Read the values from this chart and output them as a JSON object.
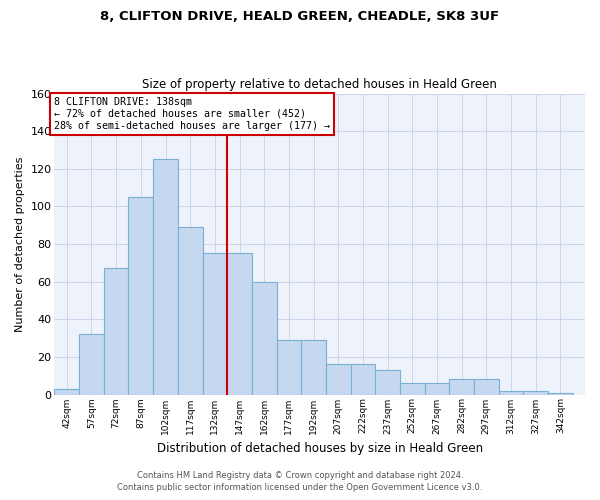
{
  "title": "8, CLIFTON DRIVE, HEALD GREEN, CHEADLE, SK8 3UF",
  "subtitle": "Size of property relative to detached houses in Heald Green",
  "xlabel": "Distribution of detached houses by size in Heald Green",
  "ylabel": "Number of detached properties",
  "bar_labels": [
    "42sqm",
    "57sqm",
    "72sqm",
    "87sqm",
    "102sqm",
    "117sqm",
    "132sqm",
    "147sqm",
    "162sqm",
    "177sqm",
    "192sqm",
    "207sqm",
    "222sqm",
    "237sqm",
    "252sqm",
    "267sqm",
    "282sqm",
    "297sqm",
    "312sqm",
    "327sqm",
    "342sqm"
  ],
  "bar_heights": [
    3,
    32,
    67,
    105,
    125,
    89,
    75,
    75,
    60,
    29,
    29,
    16,
    16,
    13,
    6,
    6,
    8,
    8,
    2,
    2,
    1
  ],
  "bar_color": "#c5d8f0",
  "bar_edge_color": "#7aafd4",
  "vline_color": "#cc0000",
  "annotation_title": "8 CLIFTON DRIVE: 138sqm",
  "annotation_line1": "← 72% of detached houses are smaller (452)",
  "annotation_line2": "28% of semi-detached houses are larger (177) →",
  "annotation_box_color": "#ffffff",
  "annotation_border_color": "#cc0000",
  "ylim": [
    0,
    160
  ],
  "yticks": [
    0,
    20,
    40,
    60,
    80,
    100,
    120,
    140,
    160
  ],
  "footer1": "Contains HM Land Registry data © Crown copyright and database right 2024.",
  "footer2": "Contains public sector information licensed under the Open Government Licence v3.0.",
  "bg_color": "#eef2fb",
  "grid_color": "#c8cfe8"
}
